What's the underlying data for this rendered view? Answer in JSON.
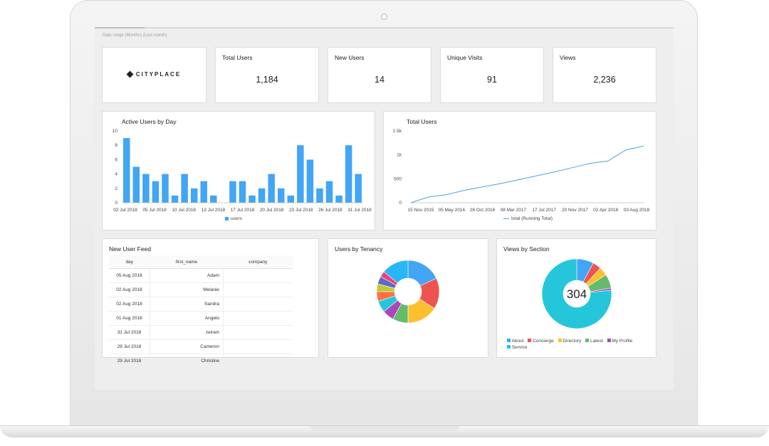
{
  "header": {
    "date_range": "Date range (Months) (Last month)"
  },
  "logo": {
    "text": "CITYPLACE"
  },
  "scorecards": [
    {
      "label": "Total Users",
      "value": "1,184"
    },
    {
      "label": "New Users",
      "value": "14"
    },
    {
      "label": "Unique Visits",
      "value": "91"
    },
    {
      "label": "Views",
      "value": "2,236"
    }
  ],
  "active_users": {
    "title": "Active Users by Day",
    "legend": "users",
    "color": "#42a5f5"
  },
  "total_users": {
    "title": "Total Users",
    "legend": "total (Running Total)",
    "color": "#4fa3d8"
  },
  "feed": {
    "title": "New User Feed",
    "columns": [
      "day",
      "first_name",
      "company"
    ],
    "rows": [
      {
        "day": "05 Aug 2018",
        "first_name": "Adam",
        "company": ""
      },
      {
        "day": "02 Aug 2018",
        "first_name": "Melanie",
        "company": ""
      },
      {
        "day": "02 Aug 2018",
        "first_name": "Sandra",
        "company": ""
      },
      {
        "day": "01 Aug 2018",
        "first_name": "Angelo",
        "company": ""
      },
      {
        "day": "31 Jul 2018",
        "first_name": "zeineh",
        "company": ""
      },
      {
        "day": "29 Jul 2018",
        "first_name": "Cameron",
        "company": ""
      },
      {
        "day": "29 Jul 2018",
        "first_name": "Christine",
        "company": ""
      }
    ]
  },
  "tenancy": {
    "title": "Users by Tenancy"
  },
  "sections": {
    "title": "Views by Section",
    "center_value": "304",
    "legend": [
      {
        "name": "About",
        "color": "#42a5f5"
      },
      {
        "name": "Concierge",
        "color": "#ef5350"
      },
      {
        "name": "Directory",
        "color": "#fbc02d"
      },
      {
        "name": "Latest",
        "color": "#66bb6a"
      },
      {
        "name": "My Profile",
        "color": "#ab47bc"
      },
      {
        "name": "Service",
        "color": "#26c6da"
      }
    ]
  },
  "chart_data": [
    {
      "type": "bar",
      "title": "Active Users by Day",
      "series": [
        {
          "name": "users",
          "values": [
            9,
            5,
            4,
            3,
            4,
            1,
            4,
            2,
            3,
            1,
            0,
            3,
            3,
            1,
            2,
            4,
            2,
            1,
            8,
            6,
            2,
            3,
            1,
            8,
            4
          ]
        }
      ],
      "x_tick_labels": [
        "02 Jul 2018",
        "05 Jul 2018",
        "10 Jul 2018",
        "13 Jul 2018",
        "17 Jul 2018",
        "20 Jul 2018",
        "23 Jul 2018",
        "26 Jul 2018",
        "31 Jul 2018"
      ],
      "y_ticks": [
        0,
        2,
        4,
        6,
        8,
        10
      ],
      "ylim": [
        0,
        10
      ]
    },
    {
      "type": "line",
      "title": "Total Users",
      "series": [
        {
          "name": "total (Running Total)",
          "points": [
            [
              "15 Nov 2015",
              0
            ],
            [
              "Dec 2015",
              120
            ],
            [
              "Feb 2016",
              170
            ],
            [
              "May 2016",
              260
            ],
            [
              "Jul 2016",
              330
            ],
            [
              "Oct 2016",
              400
            ],
            [
              "Feb 2017",
              480
            ],
            [
              "Jun 2017",
              560
            ],
            [
              "Oct 2017",
              640
            ],
            [
              "Feb 2018",
              730
            ],
            [
              "May 2018",
              820
            ],
            [
              "Jul 2018",
              870
            ],
            [
              "Aug 2018",
              1100
            ],
            [
              "Aug 2018",
              1184
            ]
          ]
        }
      ],
      "x_tick_labels": [
        "15 Nov 2015",
        "05 May 2016",
        "26 Oct 2016",
        "08 Mar 2017",
        "17 Jul 2017",
        "20 Nov 2017",
        "02 Apr 2018",
        "03 Aug 2018"
      ],
      "y_tick_labels": [
        "0",
        "500",
        "1k",
        "1.5k"
      ],
      "ylim": [
        0,
        1500
      ]
    },
    {
      "type": "pie",
      "title": "Users by Tenancy",
      "donut": true,
      "slices": [
        {
          "value": 18,
          "color": "#42a5f5"
        },
        {
          "value": 16,
          "color": "#ef5350"
        },
        {
          "value": 16,
          "color": "#fbc02d"
        },
        {
          "value": 8,
          "color": "#66bb6a"
        },
        {
          "value": 6,
          "color": "#ab47bc"
        },
        {
          "value": 6,
          "color": "#26c6da"
        },
        {
          "value": 5,
          "color": "#ff7043"
        },
        {
          "value": 4,
          "color": "#c0ca33"
        },
        {
          "value": 4,
          "color": "#5c6bc0"
        },
        {
          "value": 3,
          "color": "#ec407a"
        },
        {
          "value": 14,
          "color": "#29b6f6"
        }
      ]
    },
    {
      "type": "pie",
      "title": "Views by Section",
      "donut": true,
      "total": 304,
      "slices": [
        {
          "name": "About",
          "value": 24,
          "color": "#42a5f5"
        },
        {
          "name": "Concierge",
          "value": 12,
          "color": "#ef5350"
        },
        {
          "name": "Directory",
          "value": 12,
          "color": "#fbc02d"
        },
        {
          "name": "Latest",
          "value": 20,
          "color": "#66bb6a"
        },
        {
          "name": "My Profile",
          "value": 3,
          "color": "#ab47bc"
        },
        {
          "name": "Service",
          "value": 233,
          "color": "#26c6da"
        }
      ]
    }
  ]
}
